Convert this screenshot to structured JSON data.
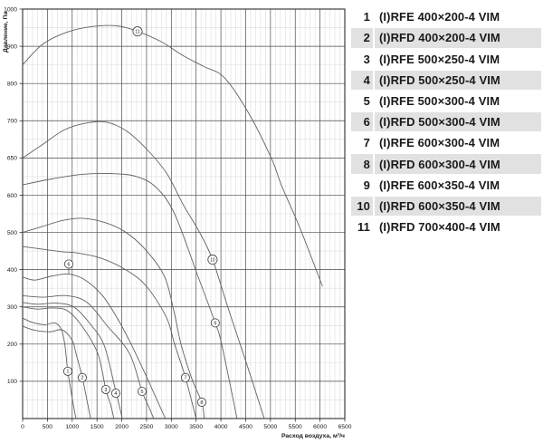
{
  "colors": {
    "axis": "#1a1a1a",
    "grid_major": "#4a4a4a",
    "grid_minor": "#dcdcdc",
    "curve": "#616161",
    "text": "#1a1a1a",
    "legend_band": "#e1e1e1"
  },
  "chart_data": {
    "type": "line",
    "title": "",
    "xlabel": "Расход воздуха, м³/ч",
    "ylabel": "Давление, Па",
    "x_min": 0,
    "x_max": 6500,
    "x_major_step": 500,
    "x_minor_step": 100,
    "x_ticks": [
      0,
      500,
      1000,
      1500,
      2000,
      2500,
      3000,
      3500,
      4000,
      4500,
      5000,
      5500,
      6000,
      6500
    ],
    "y_axis_values": [
      0,
      100,
      200,
      300,
      400,
      500,
      600,
      650,
      700,
      800,
      900,
      1000
    ],
    "y_tick_labels": [
      100,
      200,
      300,
      400,
      500,
      600,
      650,
      700,
      800,
      900,
      1000
    ],
    "grid": "on",
    "legend_position": "right-table",
    "series": [
      {
        "name": "1",
        "label_at": [
          912,
          127
        ],
        "points": [
          [
            0,
            270
          ],
          [
            200,
            258
          ],
          [
            450,
            252
          ],
          [
            650,
            257
          ],
          [
            780,
            240
          ],
          [
            850,
            200
          ],
          [
            912,
            127
          ],
          [
            1000,
            55
          ],
          [
            1075,
            0
          ]
        ]
      },
      {
        "name": "2",
        "label_at": [
          1204,
          110
        ],
        "points": [
          [
            0,
            248
          ],
          [
            250,
            237
          ],
          [
            550,
            233
          ],
          [
            800,
            238
          ],
          [
            1000,
            210
          ],
          [
            1077,
            175
          ],
          [
            1204,
            110
          ],
          [
            1300,
            48
          ],
          [
            1370,
            0
          ]
        ]
      },
      {
        "name": "3",
        "label_at": [
          1679,
          78
        ],
        "points": [
          [
            0,
            300
          ],
          [
            300,
            294
          ],
          [
            600,
            297
          ],
          [
            900,
            290
          ],
          [
            1200,
            248
          ],
          [
            1516,
            175
          ],
          [
            1679,
            78
          ],
          [
            1780,
            35
          ],
          [
            1840,
            0
          ]
        ]
      },
      {
        "name": "4",
        "label_at": [
          1880,
          68
        ],
        "points": [
          [
            0,
            312
          ],
          [
            300,
            307
          ],
          [
            700,
            310
          ],
          [
            1050,
            298
          ],
          [
            1400,
            248
          ],
          [
            1650,
            195
          ],
          [
            1850,
            90
          ],
          [
            1950,
            35
          ],
          [
            2010,
            0
          ]
        ]
      },
      {
        "name": "5",
        "label_at": [
          2409,
          73
        ],
        "points": [
          [
            0,
            330
          ],
          [
            400,
            326
          ],
          [
            900,
            330
          ],
          [
            1300,
            312
          ],
          [
            1700,
            250
          ],
          [
            2155,
            175
          ],
          [
            2409,
            73
          ],
          [
            2550,
            30
          ],
          [
            2645,
            0
          ]
        ]
      },
      {
        "name": "6",
        "label_at": [
          931,
          415
        ],
        "leader_to": [
          931,
          388
        ],
        "points": [
          [
            0,
            380
          ],
          [
            250,
            372
          ],
          [
            600,
            383
          ],
          [
            931,
            388
          ],
          [
            1250,
            373
          ],
          [
            1600,
            332
          ],
          [
            1900,
            272
          ],
          [
            2200,
            197
          ],
          [
            2500,
            112
          ],
          [
            2880,
            0
          ]
        ]
      },
      {
        "name": "7",
        "label_at": [
          3285,
          110
        ],
        "points": [
          [
            0,
            462
          ],
          [
            400,
            455
          ],
          [
            800,
            448
          ],
          [
            1100,
            445
          ],
          [
            1600,
            430
          ],
          [
            2100,
            398
          ],
          [
            2500,
            355
          ],
          [
            2900,
            272
          ],
          [
            3066,
            200
          ],
          [
            3285,
            110
          ],
          [
            3500,
            0
          ]
        ]
      },
      {
        "name": "8",
        "label_at": [
          3613,
          44
        ],
        "points": [
          [
            0,
            500
          ],
          [
            400,
            516
          ],
          [
            800,
            532
          ],
          [
            1200,
            538
          ],
          [
            1650,
            527
          ],
          [
            2050,
            503
          ],
          [
            2450,
            458
          ],
          [
            2850,
            385
          ],
          [
            3050,
            290
          ],
          [
            3195,
            200
          ],
          [
            3420,
            105
          ],
          [
            3613,
            44
          ],
          [
            3665,
            0
          ]
        ]
      },
      {
        "name": "9",
        "label_at": [
          3886,
          257
        ],
        "points": [
          [
            0,
            614
          ],
          [
            600,
            622
          ],
          [
            1200,
            628
          ],
          [
            1800,
            629
          ],
          [
            2300,
            625
          ],
          [
            2700,
            610
          ],
          [
            3069,
            549
          ],
          [
            3524,
            387
          ],
          [
            3886,
            257
          ],
          [
            4017,
            199
          ],
          [
            4325,
            0
          ]
        ]
      },
      {
        "name": "10",
        "label_at": [
          3832,
          427
        ],
        "points": [
          [
            0,
            650
          ],
          [
            400,
            668
          ],
          [
            850,
            688
          ],
          [
            1300,
            697
          ],
          [
            1700,
            698
          ],
          [
            2100,
            686
          ],
          [
            2500,
            662
          ],
          [
            2900,
            630
          ],
          [
            3250,
            572
          ],
          [
            3550,
            505
          ],
          [
            3832,
            427
          ],
          [
            4150,
            295
          ],
          [
            4500,
            155
          ],
          [
            4875,
            0
          ]
        ]
      },
      {
        "name": "11",
        "label_at": [
          2318,
          940
        ],
        "points": [
          [
            0,
            850
          ],
          [
            400,
            905
          ],
          [
            900,
            938
          ],
          [
            1400,
            953
          ],
          [
            1900,
            955
          ],
          [
            2318,
            940
          ],
          [
            2800,
            912
          ],
          [
            3225,
            876
          ],
          [
            3650,
            846
          ],
          [
            4076,
            815
          ],
          [
            4583,
            715
          ],
          [
            5036,
            647
          ],
          [
            5217,
            614
          ],
          [
            5600,
            510
          ],
          [
            6050,
            355
          ]
        ]
      }
    ]
  },
  "legend": {
    "rows": [
      {
        "num": "1",
        "label": "(I)RFE 400×200-4 VIM",
        "shaded": false
      },
      {
        "num": "2",
        "label": "(I)RFD 400×200-4 VIM",
        "shaded": true
      },
      {
        "num": "3",
        "label": "(I)RFE 500×250-4 VIM",
        "shaded": false
      },
      {
        "num": "4",
        "label": "(I)RFD 500×250-4 VIM",
        "shaded": true
      },
      {
        "num": "5",
        "label": "(I)RFE 500×300-4 VIM",
        "shaded": false
      },
      {
        "num": "6",
        "label": "(I)RFD 500×300-4 VIM",
        "shaded": true
      },
      {
        "num": "7",
        "label": "(I)RFE 600×300-4 VIM",
        "shaded": false
      },
      {
        "num": "8",
        "label": "(I)RFD 600×300-4 VIM",
        "shaded": true
      },
      {
        "num": "9",
        "label": "(I)RFE 600×350-4 VIM",
        "shaded": false
      },
      {
        "num": "10",
        "label": "(I)RFD 600×350-4 VIM",
        "shaded": true
      },
      {
        "num": "11",
        "label": "(I)RFD 700×400-4 VIM",
        "shaded": false
      }
    ]
  }
}
